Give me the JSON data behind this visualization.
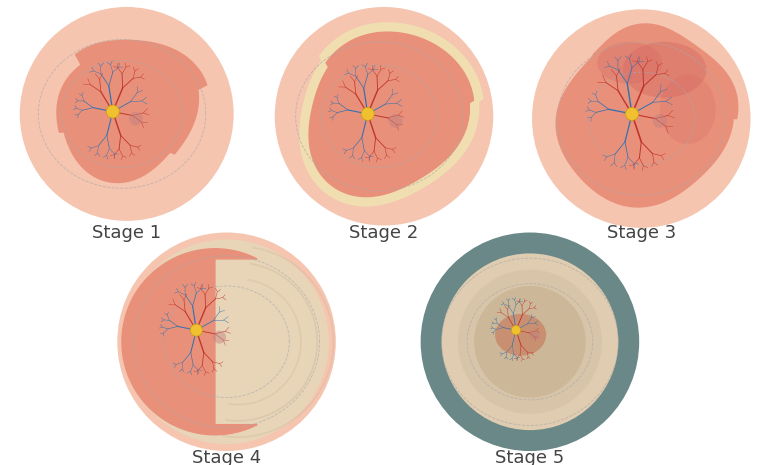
{
  "stages": [
    "Stage 1",
    "Stage 2",
    "Stage 3",
    "Stage 4",
    "Stage 5"
  ],
  "bg": "#ffffff",
  "eye_pale": "#f5c5b0",
  "retina_salmon": "#e8907a",
  "vessel_red": "#c0352b",
  "vessel_blue": "#3070b0",
  "disc_yellow": "#f0c030",
  "macula_color": "#b07070",
  "dash_color": "#aaaaaa",
  "stage2_cream": "#f0e0b0",
  "stage3_dark": "#d06060",
  "stage4_cream": "#e8d5b8",
  "stage5_gray": "#6a8888",
  "stage5_cream": "#e0ccb0",
  "label_fs": 13
}
